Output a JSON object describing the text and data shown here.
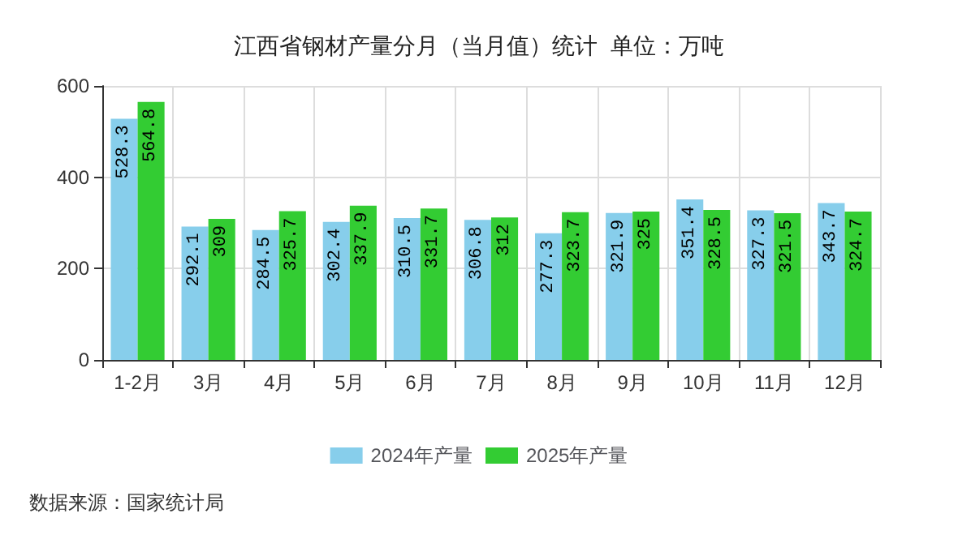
{
  "chart_data": {
    "type": "bar",
    "title": "江西省钢材产量分月（当月值）统计  单位：万吨",
    "categories": [
      "1-2月",
      "3月",
      "4月",
      "5月",
      "6月",
      "7月",
      "8月",
      "9月",
      "10月",
      "11月",
      "12月"
    ],
    "series": [
      {
        "name": "2024年产量",
        "color": "#87ceeb",
        "values": [
          528.3,
          292.1,
          284.5,
          302.4,
          310.5,
          306.8,
          277.3,
          321.9,
          351.4,
          327.3,
          343.7
        ]
      },
      {
        "name": "2025年产量",
        "color": "#33cc33",
        "values": [
          564.8,
          309,
          325.7,
          337.9,
          331.7,
          312,
          323.7,
          325,
          328.5,
          321.5,
          324.7
        ]
      }
    ],
    "ylim": [
      0,
      600
    ],
    "yticks": [
      0,
      200,
      400,
      600
    ],
    "grid": true,
    "legend": "bottom",
    "data_labels": true,
    "annotations": [
      "数据来源：国家统计局"
    ]
  }
}
